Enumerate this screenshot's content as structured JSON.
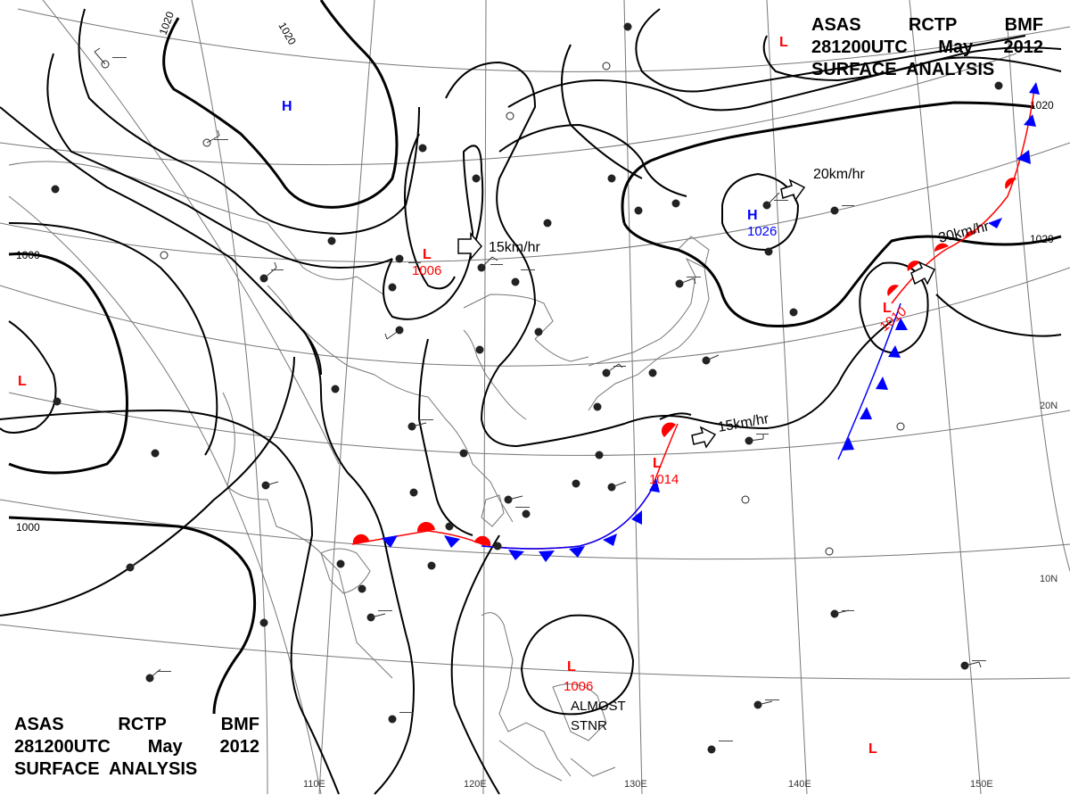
{
  "header_top": {
    "line1": [
      "ASAS",
      "RCTP",
      "BMF"
    ],
    "line2": [
      "281200UTC",
      "May",
      "2012"
    ],
    "line3": "SURFACE  ANALYSIS"
  },
  "header_bottom": {
    "line1": [
      "ASAS",
      "RCTP",
      "BMF"
    ],
    "line2": [
      "281200UTC",
      "May",
      "2012"
    ],
    "line3": "SURFACE  ANALYSIS"
  },
  "colors": {
    "low": "#ff0000",
    "high": "#0000ff",
    "warm_front": "#ff0000",
    "cold_front": "#0000ff",
    "isobar": "#000000",
    "grid": "#666666",
    "coast": "#777777"
  },
  "longitude_labels": [
    "110E",
    "120E",
    "130E",
    "140E",
    "150E"
  ],
  "latitude_labels": [
    "20N",
    "10N"
  ],
  "isobar_labels": [
    "1020",
    "1020",
    "1000",
    "1000",
    "1020",
    "1020"
  ],
  "pressure_centers": [
    {
      "id": "high-mongolia",
      "symbol": "H",
      "type": "high",
      "value": ""
    },
    {
      "id": "low-north-china",
      "symbol": "L",
      "type": "low",
      "value": "1006"
    },
    {
      "id": "high-japan",
      "symbol": "H",
      "type": "high",
      "value": "1026"
    },
    {
      "id": "low-east-japan",
      "symbol": "L",
      "type": "low",
      "value": "1010"
    },
    {
      "id": "low-west",
      "symbol": "L",
      "type": "low",
      "value": ""
    },
    {
      "id": "low-taiwan-east",
      "symbol": "L",
      "type": "low",
      "value": "1014"
    },
    {
      "id": "low-philippines",
      "symbol": "L",
      "type": "low",
      "value": "1006"
    },
    {
      "id": "low-northeast",
      "symbol": "L",
      "type": "low",
      "value": ""
    },
    {
      "id": "low-southeast",
      "symbol": "L",
      "type": "low",
      "value": ""
    }
  ],
  "motion_labels": [
    "15km/hr",
    "20km/hr",
    "30km/hr",
    "15km/hr"
  ],
  "stationary_note": [
    "ALMOST",
    "STNR"
  ]
}
